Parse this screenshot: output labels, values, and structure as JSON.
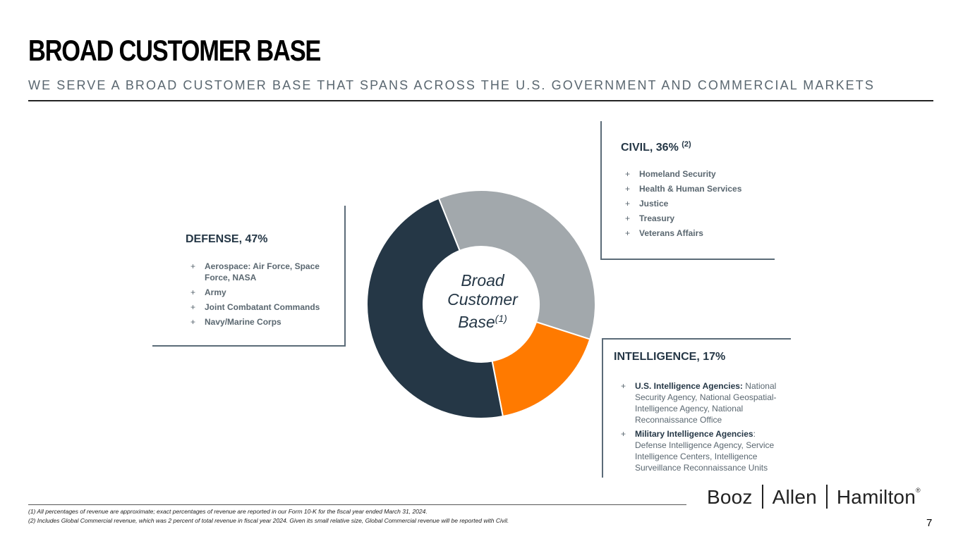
{
  "header": {
    "title": "BROAD CUSTOMER BASE",
    "subtitle": "WE SERVE A BROAD CUSTOMER BASE THAT SPANS ACROSS THE U.S. GOVERNMENT AND COMMERCIAL MARKETS"
  },
  "segments": {
    "defense": {
      "title": "DEFENSE, 47%",
      "items": [
        "Aerospace: Air Force, Space Force, NASA",
        "Army",
        "Joint Combatant Commands",
        "Navy/Marine Corps"
      ]
    },
    "civil": {
      "title": "CIVIL, 36%",
      "note": "(2)",
      "items": [
        "Homeland Security",
        "Health & Human Services",
        "Justice",
        "Treasury",
        "Veterans Affairs"
      ]
    },
    "intelligence": {
      "title": "INTELLIGENCE, 17%",
      "items": [
        {
          "lead": "U.S. Intelligence Agencies:",
          "rest": "National Security Agency, National Geospatial-Intelligence Agency, National Reconnaissance Office"
        },
        {
          "lead": "Military Intelligence Agencies",
          "rest": ": Defense Intelligence Agency, Service Intelligence Centers, Intelligence Surveillance Reconnaissance Units"
        }
      ]
    }
  },
  "bullet_symbol": "+",
  "chart_data": {
    "type": "pie",
    "donut": true,
    "center_label": "Broad Customer Base",
    "center_label_note": "(1)",
    "categories": [
      "Civil",
      "Intelligence",
      "Defense"
    ],
    "values": [
      36,
      17,
      47
    ],
    "unit": "%",
    "colors": [
      "#A2A8AC",
      "#FF7A00",
      "#253746"
    ]
  },
  "footnotes": [
    "(1) All percentages of revenue are approximate; exact percentages of revenue are reported in our Form 10-K for the fiscal year ended March 31, 2024.",
    "(2) Includes Global Commercial revenue, which was 2 percent of total revenue in fiscal year 2024. Given its small relative size, Global Commercial revenue will be reported with Civil."
  ],
  "logo": {
    "parts": [
      "Booz",
      "Allen",
      "Hamilton"
    ],
    "mark": "®"
  },
  "page_number": "7"
}
